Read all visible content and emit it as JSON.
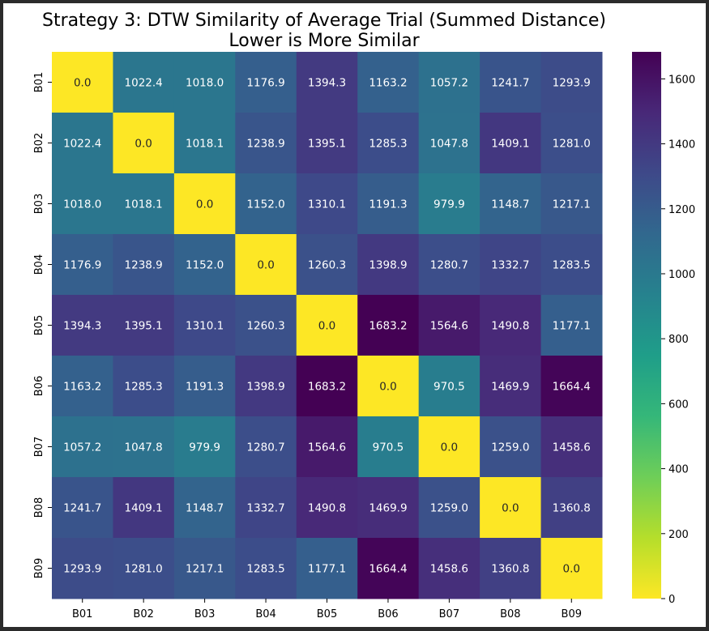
{
  "chart_data": {
    "type": "heatmap",
    "title": "Strategy 3: DTW Similarity of Average Trial (Summed Distance)",
    "subtitle": "Lower is More Similar",
    "xlabel": "",
    "ylabel": "",
    "x_categories": [
      "B01",
      "B02",
      "B03",
      "B04",
      "B05",
      "B06",
      "B07",
      "B08",
      "B09"
    ],
    "y_categories": [
      "B01",
      "B02",
      "B03",
      "B04",
      "B05",
      "B06",
      "B07",
      "B08",
      "B09"
    ],
    "values": [
      [
        0.0,
        1022.4,
        1018.0,
        1176.9,
        1394.3,
        1163.2,
        1057.2,
        1241.7,
        1293.9
      ],
      [
        1022.4,
        0.0,
        1018.1,
        1238.9,
        1395.1,
        1285.3,
        1047.8,
        1409.1,
        1281.0
      ],
      [
        1018.0,
        1018.1,
        0.0,
        1152.0,
        1310.1,
        1191.3,
        979.9,
        1148.7,
        1217.1
      ],
      [
        1176.9,
        1238.9,
        1152.0,
        0.0,
        1260.3,
        1398.9,
        1280.7,
        1332.7,
        1283.5
      ],
      [
        1394.3,
        1395.1,
        1310.1,
        1260.3,
        0.0,
        1683.2,
        1564.6,
        1490.8,
        1177.1
      ],
      [
        1163.2,
        1285.3,
        1191.3,
        1398.9,
        1683.2,
        0.0,
        970.5,
        1469.9,
        1664.4
      ],
      [
        1057.2,
        1047.8,
        979.9,
        1280.7,
        1564.6,
        970.5,
        0.0,
        1259.0,
        1458.6
      ],
      [
        1241.7,
        1409.1,
        1148.7,
        1332.7,
        1490.8,
        1469.9,
        1259.0,
        0.0,
        1360.8
      ],
      [
        1293.9,
        1281.0,
        1217.1,
        1283.5,
        1177.1,
        1664.4,
        1458.6,
        1360.8,
        0.0
      ]
    ],
    "value_format": "1 decimal",
    "colormap": "viridis_r",
    "vmin": 0,
    "vmax": 1683.2,
    "colorbar_ticks": [
      0,
      200,
      400,
      600,
      800,
      1000,
      1200,
      1400,
      1600
    ],
    "annotation_colors": {
      "on_dark": "#ffffff",
      "on_light": "#262626"
    }
  }
}
